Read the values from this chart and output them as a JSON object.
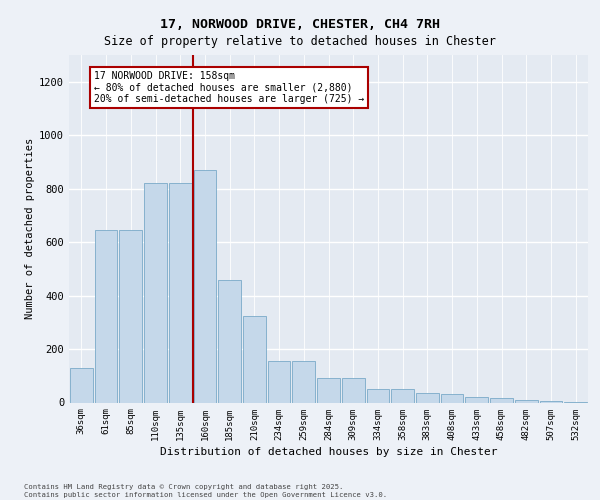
{
  "title_line1": "17, NORWOOD DRIVE, CHESTER, CH4 7RH",
  "title_line2": "Size of property relative to detached houses in Chester",
  "xlabel": "Distribution of detached houses by size in Chester",
  "ylabel": "Number of detached properties",
  "categories": [
    "36sqm",
    "61sqm",
    "85sqm",
    "110sqm",
    "135sqm",
    "160sqm",
    "185sqm",
    "210sqm",
    "234sqm",
    "259sqm",
    "284sqm",
    "309sqm",
    "334sqm",
    "358sqm",
    "383sqm",
    "408sqm",
    "433sqm",
    "458sqm",
    "482sqm",
    "507sqm",
    "532sqm"
  ],
  "values": [
    130,
    645,
    645,
    820,
    820,
    870,
    460,
    325,
    155,
    155,
    90,
    90,
    50,
    50,
    35,
    30,
    20,
    15,
    10,
    5,
    3
  ],
  "bar_color": "#c5d8ea",
  "bar_edge_color": "#7aaac8",
  "vline_color": "#aa0000",
  "annotation_text": "17 NORWOOD DRIVE: 158sqm\n← 80% of detached houses are smaller (2,880)\n20% of semi-detached houses are larger (725) →",
  "annotation_box_edgecolor": "#aa0000",
  "ylim": [
    0,
    1300
  ],
  "yticks": [
    0,
    200,
    400,
    600,
    800,
    1000,
    1200
  ],
  "background_color": "#edf1f7",
  "footer_text": "Contains HM Land Registry data © Crown copyright and database right 2025.\nContains public sector information licensed under the Open Government Licence v3.0.",
  "grid_color": "#ffffff",
  "plot_bg_color": "#e4eaf2"
}
